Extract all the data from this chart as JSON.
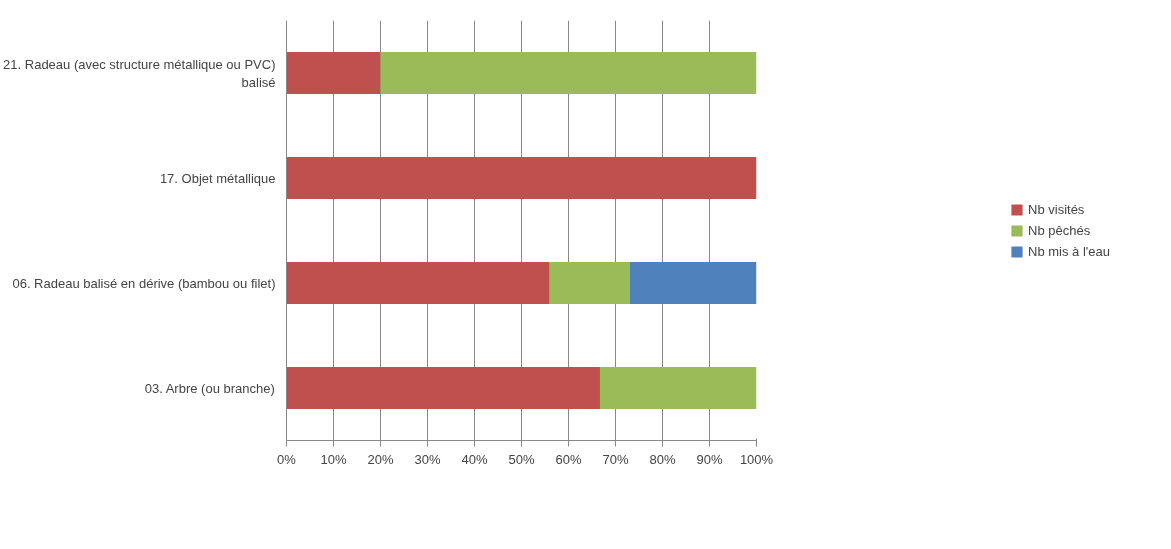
{
  "chart_data": {
    "type": "bar",
    "orientation": "horizontal",
    "stacked": true,
    "categories": [
      "21. Radeau (avec structure métallique ou PVC) balisé",
      "17. Objet métallique",
      "06. Radeau balisé en dérive (bambou ou filet)",
      "03. Arbre (ou branche)"
    ],
    "series": [
      {
        "name": "Nb visités",
        "color": "#c0504d",
        "values": [
          20,
          100,
          56,
          66.7
        ]
      },
      {
        "name": "Nb pêchés",
        "color": "#9bbb59",
        "values": [
          80,
          0,
          17,
          33.3
        ]
      },
      {
        "name": "Nb mis à l'eau",
        "color": "#4f81bd",
        "values": [
          0,
          0,
          27,
          0
        ]
      }
    ],
    "xlim": [
      0,
      100
    ],
    "xticks": [
      {
        "value": 0,
        "label": "0%"
      },
      {
        "value": 10,
        "label": "10%"
      },
      {
        "value": 20,
        "label": "20%"
      },
      {
        "value": 30,
        "label": "30%"
      },
      {
        "value": 40,
        "label": "40%"
      },
      {
        "value": 50,
        "label": "50%"
      },
      {
        "value": 60,
        "label": "60%"
      },
      {
        "value": 70,
        "label": "70%"
      },
      {
        "value": 80,
        "label": "80%"
      },
      {
        "value": 90,
        "label": "90%"
      },
      {
        "value": 100,
        "label": "100%"
      }
    ],
    "grid": "x",
    "legend": "right"
  }
}
